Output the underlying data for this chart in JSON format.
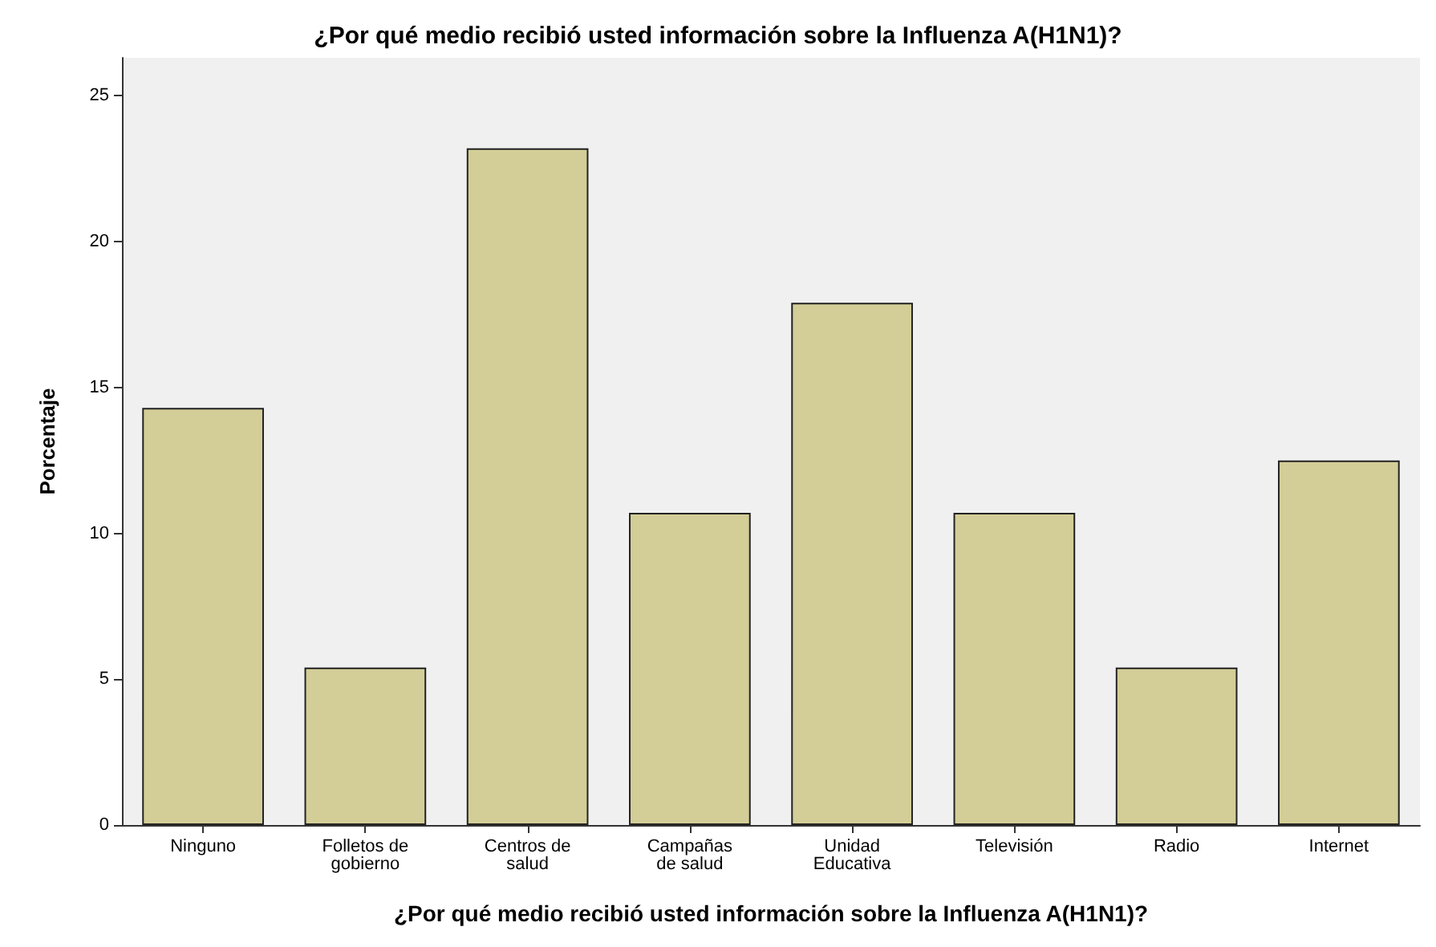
{
  "chart_data": {
    "type": "bar",
    "title": "¿Por qué medio recibió usted información sobre la Influenza A(H1N1)?",
    "xlabel": "¿Por qué medio recibió usted información sobre la Influenza A(H1N1)?",
    "ylabel": "Porcentaje",
    "categories": [
      "Ninguno",
      "Folletos de\ngobierno",
      "Centros de\nsalud",
      "Campañas\nde salud",
      "Unidad\nEducativa",
      "Televisión",
      "Radio",
      "Internet"
    ],
    "values": [
      14.3,
      5.4,
      23.2,
      10.7,
      17.9,
      10.7,
      5.4,
      12.5
    ],
    "color": "#d3ce97",
    "ylim": [
      0,
      26.3
    ],
    "yticks": [
      0,
      5,
      10,
      15,
      20,
      25
    ],
    "grid": false
  }
}
